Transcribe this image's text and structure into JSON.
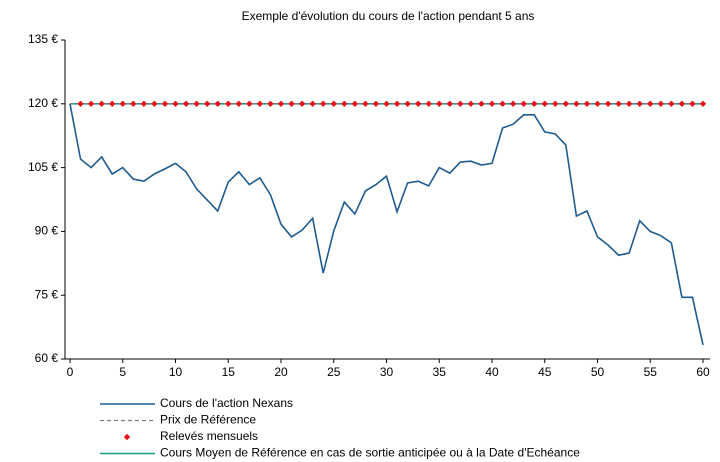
{
  "chart_data": {
    "type": "line",
    "title": "Exemple d'évolution du cours de l'action pendant 5 ans",
    "x": [
      0,
      1,
      2,
      3,
      4,
      5,
      6,
      7,
      8,
      9,
      10,
      11,
      12,
      13,
      14,
      15,
      16,
      17,
      18,
      19,
      20,
      21,
      22,
      23,
      24,
      25,
      26,
      27,
      28,
      29,
      30,
      31,
      32,
      33,
      34,
      35,
      36,
      37,
      38,
      39,
      40,
      41,
      42,
      43,
      44,
      45,
      46,
      47,
      48,
      49,
      50,
      51,
      52,
      53,
      54,
      55,
      56,
      57,
      58,
      59,
      60
    ],
    "series": [
      {
        "name": "Cours de l'action Nexans",
        "color": "#1f5b8f",
        "style": "solid",
        "values": [
          120,
          107,
          105,
          107.5,
          103.5,
          105,
          102.3,
          101.8,
          103.5,
          104.7,
          106,
          104,
          100,
          97.4,
          94.8,
          101.6,
          104,
          101,
          102.6,
          98.6,
          91.7,
          88.7,
          90.3,
          93.1,
          80.2,
          90.1,
          96.9,
          94.1,
          99.5,
          101,
          103,
          94.6,
          101.4,
          101.8,
          100.7,
          105,
          103.7,
          106.3,
          106.5,
          105.6,
          106,
          114.3,
          115.2,
          117.4,
          117.4,
          113.4,
          112.9,
          110.3,
          93.6,
          94.8,
          88.7,
          86.8,
          84.4,
          84.9,
          92.5,
          90,
          89,
          87.3,
          74.5,
          74.5,
          63.3
        ]
      },
      {
        "name": "Prix de Référence",
        "color": "#808080",
        "style": "dashed",
        "values": [
          120,
          120,
          120,
          120,
          120,
          120,
          120,
          120,
          120,
          120,
          120,
          120,
          120,
          120,
          120,
          120,
          120,
          120,
          120,
          120,
          120,
          120,
          120,
          120,
          120,
          120,
          120,
          120,
          120,
          120,
          120,
          120,
          120,
          120,
          120,
          120,
          120,
          120,
          120,
          120,
          120,
          120,
          120,
          120,
          120,
          120,
          120,
          120,
          120,
          120,
          120,
          120,
          120,
          120,
          120,
          120,
          120,
          120,
          120,
          120,
          120
        ]
      },
      {
        "name": "Relevés mensuels",
        "color": "#e8141c",
        "style": "markers",
        "values": [
          null,
          120,
          120,
          120,
          120,
          120,
          120,
          120,
          120,
          120,
          120,
          120,
          120,
          120,
          120,
          120,
          120,
          120,
          120,
          120,
          120,
          120,
          120,
          120,
          120,
          120,
          120,
          120,
          120,
          120,
          120,
          120,
          120,
          120,
          120,
          120,
          120,
          120,
          120,
          120,
          120,
          120,
          120,
          120,
          120,
          120,
          120,
          120,
          120,
          120,
          120,
          120,
          120,
          120,
          120,
          120,
          120,
          120,
          120,
          120,
          120
        ]
      },
      {
        "name": "Cours Moyen de Référence en cas de sortie anticipée ou à la Date d'Echéance",
        "color": "#1a9c8c",
        "style": "solid",
        "values": [
          120,
          120,
          120,
          120,
          120,
          120,
          120,
          120,
          120,
          120,
          120,
          120,
          120,
          120,
          120,
          120,
          120,
          120,
          120,
          120,
          120,
          120,
          120,
          120,
          120,
          120,
          120,
          120,
          120,
          120,
          120,
          120,
          120,
          120,
          120,
          120,
          120,
          120,
          120,
          120,
          120,
          120,
          120,
          120,
          120,
          120,
          120,
          120,
          120,
          120,
          120,
          120,
          120,
          120,
          120,
          120,
          120,
          120,
          120,
          120,
          120
        ]
      }
    ],
    "xlim": [
      0,
      60
    ],
    "xticks": [
      0,
      5,
      10,
      15,
      20,
      25,
      30,
      35,
      40,
      45,
      50,
      55,
      60
    ],
    "ylim": [
      60,
      135
    ],
    "yticks": [
      {
        "value": 60,
        "label": "60 €"
      },
      {
        "value": 75,
        "label": "75 €"
      },
      {
        "value": 90,
        "label": "90 €"
      },
      {
        "value": 105,
        "label": "105 €"
      },
      {
        "value": 120,
        "label": "120 €"
      },
      {
        "value": 135,
        "label": "135 €"
      }
    ],
    "legend": "bottom"
  }
}
